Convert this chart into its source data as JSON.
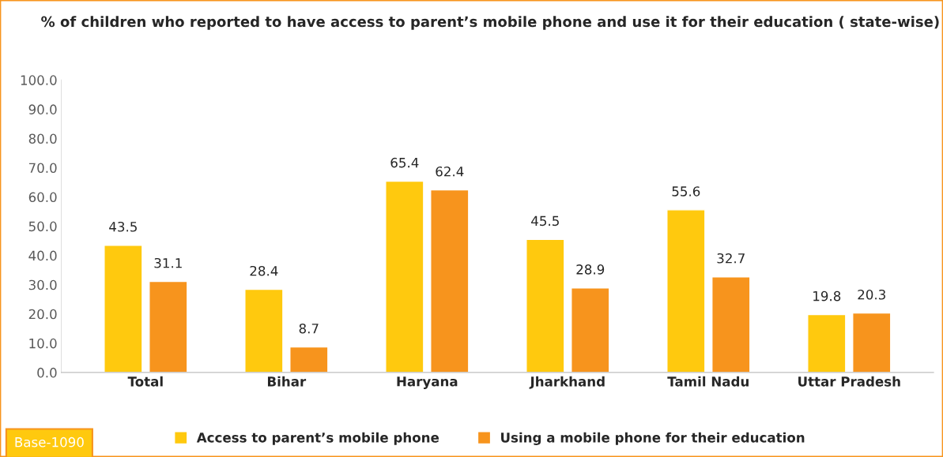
{
  "chart_data": {
    "type": "bar",
    "title": "% of children who reported to have access to parent’s mobile phone and use it for their education ( state-wise)",
    "categories": [
      "Total",
      "Bihar",
      "Haryana",
      "Jharkhand",
      "Tamil Nadu",
      "Uttar Pradesh"
    ],
    "series": [
      {
        "name": "Access to parent’s mobile phone",
        "color": "#ffc90e",
        "values": [
          43.5,
          28.4,
          65.4,
          45.5,
          55.6,
          19.8
        ]
      },
      {
        "name": "Using a mobile phone for their education",
        "color": "#f7941d",
        "values": [
          31.1,
          8.7,
          62.4,
          28.9,
          32.7,
          20.3
        ]
      }
    ],
    "ylim": [
      0,
      100
    ],
    "yticks": [
      {
        "value": 0,
        "label": "0.0"
      },
      {
        "value": 10,
        "label": "10.0"
      },
      {
        "value": 20,
        "label": "20.0"
      },
      {
        "value": 30,
        "label": "30.0"
      },
      {
        "value": 40,
        "label": "40.0"
      },
      {
        "value": 50,
        "label": "50.0"
      },
      {
        "value": 60,
        "label": "60.0"
      },
      {
        "value": 70,
        "label": "70.0"
      },
      {
        "value": 80,
        "label": "80.0"
      },
      {
        "value": 90,
        "label": "90.0"
      },
      {
        "value": 100,
        "label": "100.0"
      }
    ],
    "data_labels": true,
    "legend": "bottom",
    "grid": false,
    "annotations": [
      "Base-1090"
    ]
  }
}
